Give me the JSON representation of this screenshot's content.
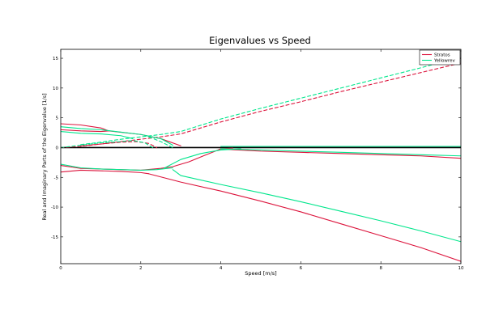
{
  "chart_data": {
    "type": "line",
    "title": "Eigenvalues vs Speed",
    "xlabel": "Speed [m/s]",
    "ylabel": "Real and Imaginary Parts of the Eigenvalue [1/s]",
    "xlim": [
      0,
      10
    ],
    "ylim": [
      -19.5,
      16.5
    ],
    "xticks": [
      0,
      2,
      4,
      6,
      8,
      10
    ],
    "yticks": [
      -15,
      -10,
      -5,
      0,
      5,
      10,
      15
    ],
    "xtick_labels": [
      "0",
      "2",
      "4",
      "6",
      "8",
      "10"
    ],
    "ytick_labels": [
      "-15",
      "-10",
      "-5",
      "0",
      "5",
      "10",
      "15"
    ],
    "grid": false,
    "legend_position": "top-right",
    "legend": [
      {
        "name": "Stratos",
        "color": "#dc143c"
      },
      {
        "name": "Yellowrev",
        "color": "#00e68c"
      }
    ],
    "zero_line": {
      "y": 0,
      "color": "#000000"
    },
    "series": [
      {
        "name": "Stratos",
        "part": "real",
        "style": "solid",
        "color": "#dc143c",
        "x": [
          0,
          0.5,
          1.0,
          1.2,
          1.6,
          2.0,
          2.5,
          3.0
        ],
        "y": [
          4.0,
          3.8,
          3.3,
          2.8,
          2.5,
          2.2,
          1.5,
          0.3
        ]
      },
      {
        "name": "Stratos",
        "part": "real",
        "style": "solid",
        "color": "#dc143c",
        "x": [
          0,
          0.5,
          1.0,
          1.2
        ],
        "y": [
          3.0,
          2.8,
          2.7,
          2.8
        ]
      },
      {
        "name": "Stratos",
        "part": "real",
        "style": "solid",
        "color": "#dc143c",
        "x": [
          0,
          0.5,
          1.0,
          1.5,
          2.0,
          2.2
        ],
        "y": [
          -4.1,
          -3.8,
          -3.9,
          -4.0,
          -4.2,
          -4.4
        ]
      },
      {
        "name": "Stratos",
        "part": "real",
        "style": "solid",
        "color": "#dc143c",
        "x": [
          0,
          0.3,
          0.5,
          1.0,
          2.0,
          2.5,
          2.8,
          3.2,
          3.6,
          3.9,
          4.0,
          4.3
        ],
        "y": [
          -3.0,
          -3.3,
          -3.5,
          -3.6,
          -3.8,
          -3.5,
          -3.2,
          -2.4,
          -1.3,
          -0.5,
          -0.2,
          -0.1
        ]
      },
      {
        "name": "Stratos",
        "part": "real",
        "style": "solid",
        "color": "#dc143c",
        "x": [
          2.2,
          3.0,
          4.0,
          5.0,
          6.0,
          7.0,
          8.0,
          9.0,
          10.0
        ],
        "y": [
          -4.4,
          -5.8,
          -7.3,
          -9.0,
          -10.8,
          -12.8,
          -14.8,
          -16.8,
          -19.1
        ]
      },
      {
        "name": "Stratos",
        "part": "real",
        "style": "solid",
        "color": "#dc143c",
        "x": [
          4.0,
          5.0,
          6.0,
          7.0,
          8.0,
          9.0,
          10.0
        ],
        "y": [
          -0.25,
          -0.6,
          -0.8,
          -1.0,
          -1.2,
          -1.4,
          -1.8
        ]
      },
      {
        "name": "Stratos",
        "part": "imaginary",
        "style": "dashed",
        "color": "#dc143c",
        "x": [
          0,
          0.5,
          1.0,
          1.5,
          1.9,
          2.2,
          2.4
        ],
        "y": [
          0,
          0.2,
          0.6,
          0.9,
          1.0,
          0.7,
          0
        ]
      },
      {
        "name": "Stratos",
        "part": "imaginary",
        "style": "dashed",
        "color": "#dc143c",
        "x": [
          0.5,
          1.0,
          1.5,
          2.0,
          2.5,
          3.0,
          4.0,
          5.0,
          6.0,
          7.0,
          8.0,
          9.0,
          10.0
        ],
        "y": [
          0.3,
          0.6,
          1.0,
          1.4,
          1.8,
          2.3,
          4.3,
          6.1,
          7.7,
          9.4,
          11.0,
          12.6,
          14.2
        ]
      },
      {
        "name": "Yellowrev",
        "part": "real",
        "style": "solid",
        "color": "#00e68c",
        "x": [
          0,
          0.5,
          1.0,
          1.5,
          2.0,
          2.5,
          2.8
        ],
        "y": [
          3.5,
          3.2,
          3.0,
          2.6,
          2.2,
          1.5,
          0.4
        ]
      },
      {
        "name": "Yellowrev",
        "part": "real",
        "style": "solid",
        "color": "#00e68c",
        "x": [
          0,
          0.5,
          1.0,
          1.5,
          1.8
        ],
        "y": [
          2.7,
          2.4,
          2.3,
          2.0,
          1.5
        ]
      },
      {
        "name": "Yellowrev",
        "part": "real",
        "style": "solid",
        "color": "#00e68c",
        "x": [
          0,
          0.5,
          1.0,
          1.5,
          2.0,
          2.4,
          2.8
        ],
        "y": [
          -2.8,
          -3.4,
          -3.6,
          -3.7,
          -3.8,
          -3.7,
          -3.4
        ]
      },
      {
        "name": "Yellowrev",
        "part": "real",
        "style": "solid",
        "color": "#00e68c",
        "x": [
          2.6,
          3.0,
          3.5,
          4.0,
          4.5
        ],
        "y": [
          -3.4,
          -2.0,
          -1.0,
          -0.4,
          -0.2
        ]
      },
      {
        "name": "Yellowrev",
        "part": "real",
        "style": "solid",
        "color": "#00e68c",
        "x": [
          2.8,
          3.0,
          4.0,
          5.0,
          6.0,
          7.0,
          8.0,
          9.0,
          10.0
        ],
        "y": [
          -3.7,
          -4.7,
          -6.2,
          -7.6,
          -9.1,
          -10.7,
          -12.3,
          -14.0,
          -15.8
        ]
      },
      {
        "name": "Yellowrev",
        "part": "real",
        "style": "solid",
        "color": "#00e68c",
        "x": [
          4.0,
          5.0,
          6.0,
          7.0,
          8.0,
          9.0,
          10.0
        ],
        "y": [
          -0.2,
          -0.4,
          -0.6,
          -0.8,
          -1.0,
          -1.2,
          -1.4
        ]
      },
      {
        "name": "Yellowrev",
        "part": "real",
        "style": "solid",
        "color": "#00e68c",
        "x": [
          4.0,
          10.0
        ],
        "y": [
          0.2,
          0.2
        ]
      },
      {
        "name": "Yellowrev",
        "part": "imaginary",
        "style": "dashed",
        "color": "#00e68c",
        "x": [
          0,
          0.5,
          1.0,
          1.5,
          1.8,
          2.1,
          2.3
        ],
        "y": [
          0,
          0.4,
          0.8,
          1.0,
          1.2,
          0.8,
          0
        ]
      },
      {
        "name": "Yellowrev",
        "part": "imaginary",
        "style": "dashed",
        "color": "#00e68c",
        "x": [
          0.5,
          1.0,
          1.5,
          2.0,
          2.5,
          3.0,
          4.0,
          5.0,
          6.0,
          7.0,
          8.0,
          9.0,
          10.0
        ],
        "y": [
          0.5,
          0.9,
          1.4,
          1.8,
          2.2,
          2.7,
          4.8,
          6.6,
          8.3,
          10.0,
          11.7,
          13.4,
          15.2
        ]
      },
      {
        "name": "Yellowrev",
        "part": "imaginary",
        "style": "dashed",
        "color": "#00e68c",
        "x": [
          2.2,
          2.5,
          2.8
        ],
        "y": [
          1.8,
          1.0,
          0
        ]
      }
    ]
  }
}
